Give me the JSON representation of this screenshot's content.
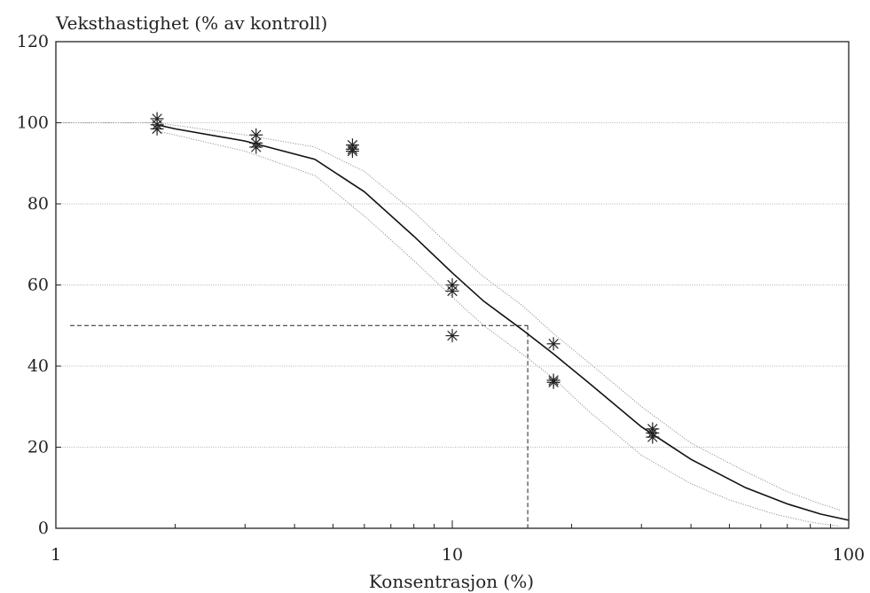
{
  "chart_data": {
    "type": "scatter",
    "title": "",
    "ylabel": "Veksthastighet (% av kontroll)",
    "xlabel": "Konsentrasjon (%)",
    "x_scale": "log",
    "xlim": [
      1,
      100
    ],
    "ylim": [
      0,
      120
    ],
    "x_ticks": [
      "1",
      "10",
      "100"
    ],
    "y_ticks": [
      "0",
      "20",
      "40",
      "60",
      "80",
      "100",
      "120"
    ],
    "grid": "horizontal",
    "series": [
      {
        "kind": "points",
        "marker": "asterisk",
        "x": [
          1.8,
          1.8,
          1.8,
          3.2,
          3.2,
          3.2,
          5.6,
          5.6,
          5.6,
          10,
          10,
          10,
          18,
          18,
          18,
          32,
          32,
          32
        ],
        "y": [
          101,
          99.5,
          98.5,
          97,
          95,
          94,
          94.5,
          93.5,
          93,
          60,
          58.5,
          47.5,
          45.5,
          36.5,
          36,
          24.5,
          23.5,
          22.5
        ]
      },
      {
        "kind": "fit",
        "style": "solid",
        "x": [
          1.8,
          2,
          3,
          4.5,
          6,
          8,
          10,
          12,
          15,
          18,
          22,
          30,
          40,
          55,
          70,
          85,
          100
        ],
        "y": [
          99.5,
          98.5,
          95.5,
          91,
          83,
          72,
          63,
          56,
          49,
          43,
          36,
          25,
          17,
          10,
          6,
          3.5,
          2
        ]
      },
      {
        "kind": "confidence-upper",
        "style": "dotted",
        "x": [
          1,
          1.8,
          3,
          4.5,
          6,
          8,
          10,
          12,
          15,
          18,
          22,
          30,
          40,
          55,
          70,
          85,
          95
        ],
        "y": [
          100,
          100,
          97,
          94,
          88,
          78,
          69,
          62,
          55,
          48,
          41,
          30,
          21,
          14,
          9,
          6,
          4.5
        ]
      },
      {
        "kind": "confidence-lower",
        "style": "dotted",
        "x": [
          1.8,
          3,
          4.5,
          6,
          8,
          10,
          12,
          15,
          18,
          22,
          30,
          40,
          50,
          65,
          80,
          95
        ],
        "y": [
          98,
          93,
          87,
          77,
          66,
          57,
          50,
          43,
          37,
          29,
          18,
          11,
          7,
          3.5,
          1.5,
          0.5
        ]
      }
    ],
    "annotations": [
      {
        "type": "dashed-guide",
        "y": 50,
        "x": 15.5
      }
    ]
  }
}
